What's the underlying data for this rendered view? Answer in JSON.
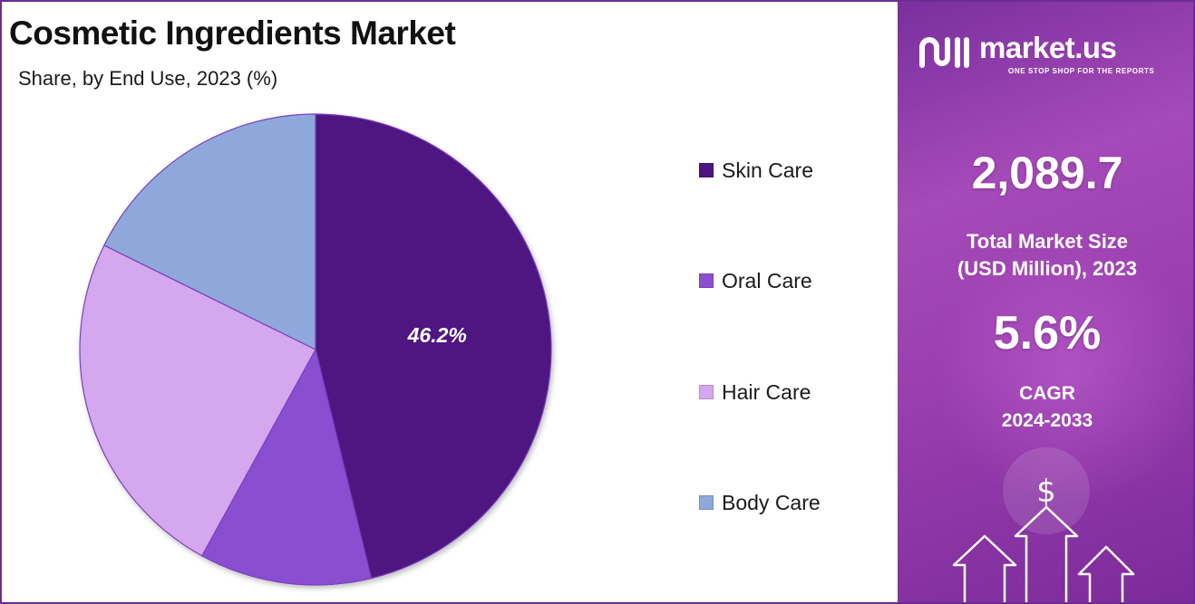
{
  "chart_data": {
    "type": "pie",
    "title": "Cosmetic Ingredients Market",
    "subtitle": "Share, by End Use, 2023 (%)",
    "categories": [
      "Skin Care",
      "Oral Care",
      "Hair Care",
      "Body Care"
    ],
    "values": [
      46.2,
      11.8,
      24.3,
      17.7
    ],
    "colors": [
      "#4e1580",
      "#8a4fd0",
      "#d4a7ee",
      "#8fa8dc"
    ],
    "data_labels": [
      "46.2%",
      "",
      "",
      ""
    ],
    "legend_position": "right"
  },
  "brand": {
    "name": "market.us",
    "tagline": "ONE STOP SHOP FOR THE REPORTS"
  },
  "stats": {
    "market_size_value": "2,089.7",
    "market_size_label_line1": "Total Market Size",
    "market_size_label_line2": "(USD Million), 2023",
    "cagr_value": "5.6%",
    "cagr_label_line1": "CAGR",
    "cagr_label_line2": "2024-2033"
  },
  "decor": {
    "dollar_symbol": "$"
  }
}
